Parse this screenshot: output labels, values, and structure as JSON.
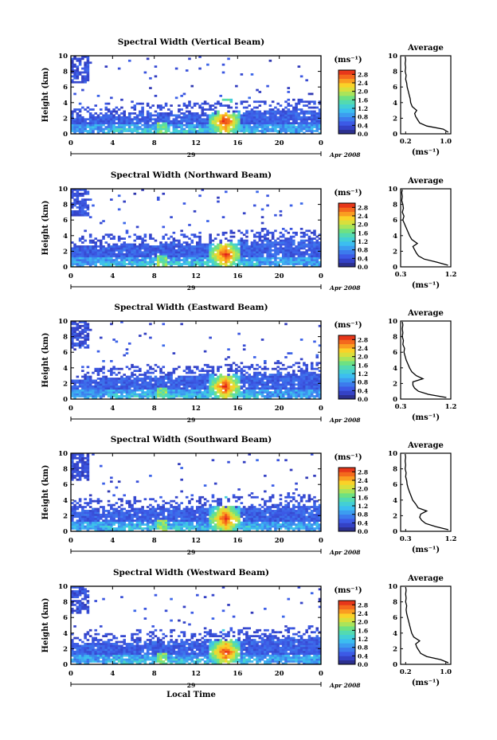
{
  "figure": {
    "date_label": "Apr 2008",
    "day_label": "29",
    "x_axis_label": "Local Time",
    "colorbar_unit": "(ms⁻¹)",
    "average_title": "Average",
    "average_xlabel": "(ms⁻¹)"
  },
  "chart_data": [
    {
      "type": "heatmap",
      "title": "Spectral Width (Vertical Beam)",
      "ylabel": "Height (km)",
      "xlabel": "",
      "x_ticks": [
        "0",
        "4",
        "8",
        "12",
        "16",
        "20",
        "0"
      ],
      "y_ticks": [
        "0",
        "2",
        "4",
        "6",
        "8",
        "10"
      ],
      "xlim": [
        0,
        24
      ],
      "ylim": [
        0,
        10
      ],
      "colorbar": {
        "label": "(ms⁻¹)",
        "ticks": [
          "0.0",
          "0.4",
          "0.8",
          "1.2",
          "1.6",
          "2.0",
          "2.4",
          "2.8"
        ],
        "range": [
          0,
          3.0
        ]
      },
      "average_profile": {
        "title": "Average",
        "xlabel": "(ms⁻¹)",
        "xlim": [
          0.1,
          1.1
        ],
        "x_ticks": [
          "0.2",
          "1.0"
        ],
        "y_ticks": [
          "0",
          "2",
          "4",
          "6",
          "8",
          "10"
        ],
        "height_km": [
          0.2,
          0.6,
          1.0,
          1.4,
          1.8,
          2.2,
          2.6,
          3.0,
          3.5,
          4.0,
          4.5,
          5.0,
          5.5,
          6.0,
          6.5,
          7.0,
          7.5,
          8.0,
          8.5,
          9.0,
          9.5,
          9.9
        ],
        "width_ms": [
          1.05,
          0.95,
          0.62,
          0.48,
          0.44,
          0.4,
          0.38,
          0.42,
          0.33,
          0.3,
          0.29,
          0.27,
          0.25,
          0.23,
          0.22,
          0.2,
          0.21,
          0.19,
          0.2,
          0.19,
          0.2,
          0.19
        ]
      }
    },
    {
      "type": "heatmap",
      "title": "Spectral Width (Northward Beam)",
      "ylabel": "Height (km)",
      "xlabel": "",
      "x_ticks": [
        "0",
        "4",
        "8",
        "12",
        "16",
        "20",
        "0"
      ],
      "y_ticks": [
        "0",
        "2",
        "4",
        "6",
        "8",
        "10"
      ],
      "xlim": [
        0,
        24
      ],
      "ylim": [
        0,
        10
      ],
      "colorbar": {
        "label": "(ms⁻¹)",
        "ticks": [
          "0.0",
          "0.4",
          "0.8",
          "1.2",
          "1.6",
          "2.0",
          "2.4",
          "2.8"
        ],
        "range": [
          0,
          3.0
        ]
      },
      "average_profile": {
        "title": "Average",
        "xlabel": "(ms⁻¹)",
        "xlim": [
          0.3,
          1.2
        ],
        "x_ticks": [
          "0.3",
          "1.2"
        ],
        "y_ticks": [
          "0",
          "2",
          "4",
          "6",
          "8",
          "10"
        ],
        "height_km": [
          0.2,
          0.6,
          1.0,
          1.4,
          1.8,
          2.2,
          2.6,
          3.0,
          3.5,
          4.0,
          4.5,
          5.0,
          5.5,
          6.0,
          6.5,
          7.0,
          7.5,
          8.0,
          8.5,
          9.0,
          9.5,
          9.9
        ],
        "width_ms": [
          1.15,
          0.95,
          0.72,
          0.62,
          0.58,
          0.55,
          0.52,
          0.6,
          0.5,
          0.46,
          0.43,
          0.4,
          0.37,
          0.34,
          0.36,
          0.33,
          0.35,
          0.34,
          0.32,
          0.33,
          0.32,
          0.33
        ]
      }
    },
    {
      "type": "heatmap",
      "title": "Spectral Width (Eastward Beam)",
      "ylabel": "Height (km)",
      "xlabel": "",
      "x_ticks": [
        "0",
        "4",
        "8",
        "12",
        "16",
        "20",
        "0"
      ],
      "y_ticks": [
        "0",
        "2",
        "4",
        "6",
        "8",
        "10"
      ],
      "xlim": [
        0,
        24
      ],
      "ylim": [
        0,
        10
      ],
      "colorbar": {
        "label": "(ms⁻¹)",
        "ticks": [
          "0.0",
          "0.4",
          "0.8",
          "1.2",
          "1.6",
          "2.0",
          "2.4",
          "2.8"
        ],
        "range": [
          0,
          3.0
        ]
      },
      "average_profile": {
        "title": "Average",
        "xlabel": "(ms⁻¹)",
        "xlim": [
          0.3,
          1.2
        ],
        "x_ticks": [
          "0.3",
          "1.2"
        ],
        "y_ticks": [
          "0",
          "2",
          "4",
          "6",
          "8",
          "10"
        ],
        "height_km": [
          0.2,
          0.6,
          1.0,
          1.4,
          1.8,
          2.2,
          2.6,
          3.0,
          3.5,
          4.0,
          4.5,
          5.0,
          5.5,
          6.0,
          6.5,
          7.0,
          7.5,
          8.0,
          8.5,
          9.0,
          9.5,
          9.9
        ],
        "width_ms": [
          1.12,
          0.8,
          0.62,
          0.55,
          0.52,
          0.52,
          0.7,
          0.58,
          0.5,
          0.46,
          0.43,
          0.4,
          0.38,
          0.36,
          0.37,
          0.34,
          0.35,
          0.33,
          0.34,
          0.33,
          0.34,
          0.33
        ]
      }
    },
    {
      "type": "heatmap",
      "title": "Spectral Width (Southward Beam)",
      "ylabel": "Height (km)",
      "xlabel": "",
      "x_ticks": [
        "0",
        "4",
        "8",
        "12",
        "16",
        "20",
        "0"
      ],
      "y_ticks": [
        "0",
        "2",
        "4",
        "6",
        "8",
        "10"
      ],
      "xlim": [
        0,
        24
      ],
      "ylim": [
        0,
        10
      ],
      "colorbar": {
        "label": "(ms⁻¹)",
        "ticks": [
          "0.0",
          "0.4",
          "0.8",
          "1.2",
          "1.6",
          "2.0",
          "2.4",
          "2.8"
        ],
        "range": [
          0,
          3.0
        ]
      },
      "average_profile": {
        "title": "Average",
        "xlabel": "(ms⁻¹)",
        "xlim": [
          0.2,
          1.2
        ],
        "x_ticks": [
          "0.3",
          "1.2"
        ],
        "y_ticks": [
          "0",
          "2",
          "4",
          "6",
          "8",
          "10"
        ],
        "height_km": [
          0.2,
          0.6,
          1.0,
          1.4,
          1.8,
          2.2,
          2.6,
          3.0,
          3.5,
          4.0,
          4.5,
          5.0,
          5.5,
          6.0,
          6.5,
          7.0,
          7.5,
          8.0,
          8.5,
          9.0,
          9.5,
          9.9
        ],
        "width_ms": [
          1.15,
          0.9,
          0.7,
          0.62,
          0.58,
          0.6,
          0.72,
          0.55,
          0.5,
          0.44,
          0.41,
          0.38,
          0.35,
          0.33,
          0.32,
          0.3,
          0.31,
          0.29,
          0.3,
          0.29,
          0.3,
          0.29
        ]
      }
    },
    {
      "type": "heatmap",
      "title": "Spectral Width (Westward Beam)",
      "ylabel": "Height (km)",
      "xlabel": "Local Time",
      "x_ticks": [
        "0",
        "4",
        "8",
        "12",
        "16",
        "20",
        "0"
      ],
      "y_ticks": [
        "0",
        "2",
        "4",
        "6",
        "8",
        "10"
      ],
      "xlim": [
        0,
        24
      ],
      "ylim": [
        0,
        10
      ],
      "colorbar": {
        "label": "(ms⁻¹)",
        "ticks": [
          "0.0",
          "0.4",
          "0.8",
          "1.2",
          "1.6",
          "2.0",
          "2.4",
          "2.8"
        ],
        "range": [
          0,
          3.0
        ]
      },
      "average_profile": {
        "title": "Average",
        "xlabel": "(ms⁻¹)",
        "xlim": [
          0.1,
          1.1
        ],
        "x_ticks": [
          "0.2",
          "1.0"
        ],
        "y_ticks": [
          "0",
          "2",
          "4",
          "6",
          "8",
          "10"
        ],
        "height_km": [
          0.2,
          0.6,
          1.0,
          1.4,
          1.8,
          2.2,
          2.6,
          3.0,
          3.5,
          4.0,
          4.5,
          5.0,
          5.5,
          6.0,
          6.5,
          7.0,
          7.5,
          8.0,
          8.5,
          9.0,
          9.5,
          9.9
        ],
        "width_ms": [
          1.05,
          0.9,
          0.62,
          0.5,
          0.46,
          0.42,
          0.4,
          0.48,
          0.36,
          0.32,
          0.3,
          0.28,
          0.26,
          0.24,
          0.22,
          0.21,
          0.22,
          0.2,
          0.21,
          0.2,
          0.21,
          0.2
        ]
      }
    }
  ]
}
